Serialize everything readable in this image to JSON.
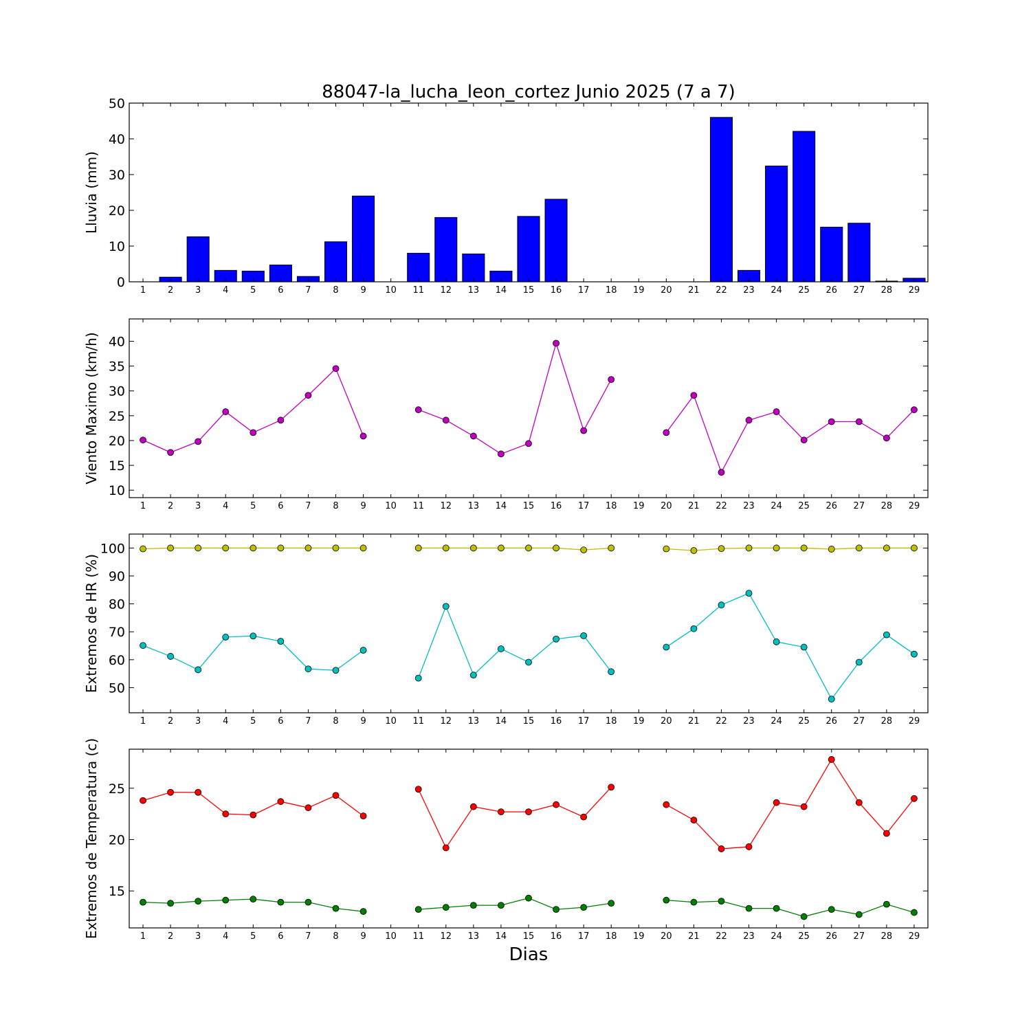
{
  "figure": {
    "title": "88047-la_lucha_leon_cortez Junio 2025  (7 a 7)",
    "xlabel": "Dias"
  },
  "chart_data": [
    {
      "type": "bar",
      "ylabel": "Lluvia (mm)",
      "ylim": [
        0,
        50
      ],
      "yticks": [
        0,
        10,
        20,
        30,
        40,
        50
      ],
      "x": [
        1,
        2,
        3,
        4,
        5,
        6,
        7,
        8,
        9,
        10,
        11,
        12,
        13,
        14,
        15,
        16,
        17,
        18,
        19,
        20,
        21,
        22,
        23,
        24,
        25,
        26,
        27,
        28,
        29
      ],
      "xticks": [
        1,
        2,
        3,
        4,
        5,
        6,
        7,
        8,
        9,
        10,
        11,
        12,
        13,
        14,
        15,
        16,
        17,
        18,
        19,
        20,
        21,
        22,
        23,
        24,
        25,
        26,
        27,
        28,
        29
      ],
      "color": "#0000ff",
      "values": [
        0,
        1.3,
        12.6,
        3.2,
        3.0,
        4.7,
        1.5,
        11.2,
        24.0,
        0,
        8.0,
        18.0,
        7.8,
        3.0,
        18.3,
        23.1,
        0,
        0,
        0,
        0,
        0,
        46.0,
        3.2,
        32.4,
        42.1,
        15.3,
        16.4,
        0.2,
        1.0
      ],
      "grid": false
    },
    {
      "type": "line",
      "ylabel": "Viento Maximo (km/h)",
      "ylim": [
        8.5,
        44.5
      ],
      "yticks": [
        10,
        15,
        20,
        25,
        30,
        35,
        40
      ],
      "x": [
        1,
        2,
        3,
        4,
        5,
        6,
        7,
        8,
        9,
        10,
        11,
        12,
        13,
        14,
        15,
        16,
        17,
        18,
        19,
        20,
        21,
        22,
        23,
        24,
        25,
        26,
        27,
        28,
        29
      ],
      "xticks": [
        1,
        2,
        3,
        4,
        5,
        6,
        7,
        8,
        9,
        10,
        11,
        12,
        13,
        14,
        15,
        16,
        17,
        18,
        19,
        20,
        21,
        22,
        23,
        24,
        25,
        26,
        27,
        28,
        29
      ],
      "series": [
        {
          "color": "#bf00bf",
          "values": [
            20.1,
            17.6,
            19.8,
            25.8,
            21.6,
            24.1,
            29.1,
            34.5,
            20.9,
            null,
            26.2,
            24.1,
            20.9,
            17.3,
            19.4,
            39.6,
            22.0,
            32.3,
            null,
            21.6,
            29.1,
            13.6,
            24.1,
            25.8,
            20.1,
            23.8,
            23.8,
            20.5,
            26.2
          ]
        }
      ],
      "grid": false
    },
    {
      "type": "line",
      "ylabel": "Extremos de HR (%)",
      "ylim": [
        41,
        105
      ],
      "yticks": [
        50,
        60,
        70,
        80,
        90,
        100
      ],
      "x": [
        1,
        2,
        3,
        4,
        5,
        6,
        7,
        8,
        9,
        10,
        11,
        12,
        13,
        14,
        15,
        16,
        17,
        18,
        19,
        20,
        21,
        22,
        23,
        24,
        25,
        26,
        27,
        28,
        29
      ],
      "xticks": [
        1,
        2,
        3,
        4,
        5,
        6,
        7,
        8,
        9,
        10,
        11,
        12,
        13,
        14,
        15,
        16,
        17,
        18,
        19,
        20,
        21,
        22,
        23,
        24,
        25,
        26,
        27,
        28,
        29
      ],
      "series": [
        {
          "color": "#bfbf00",
          "values": [
            99.7,
            100,
            100,
            100,
            100,
            100,
            100,
            100,
            100,
            null,
            100,
            100,
            100,
            100,
            100,
            100,
            99.3,
            100,
            null,
            99.7,
            99.1,
            99.8,
            100,
            100,
            100,
            99.6,
            100,
            100,
            100
          ]
        },
        {
          "color": "#00bfbf",
          "values": [
            65.1,
            61.2,
            56.4,
            68.1,
            68.5,
            66.6,
            56.7,
            56.2,
            63.4,
            null,
            53.4,
            79.1,
            54.5,
            63.9,
            59.1,
            67.4,
            68.6,
            55.7,
            null,
            64.5,
            71.1,
            79.6,
            83.8,
            66.4,
            64.5,
            45.9,
            59.1,
            68.9,
            62.0
          ]
        }
      ],
      "grid": false
    },
    {
      "type": "line",
      "ylabel": "Extremos de Temperatura (c)",
      "ylim": [
        11.4,
        28.8
      ],
      "yticks": [
        15,
        20,
        25
      ],
      "x": [
        1,
        2,
        3,
        4,
        5,
        6,
        7,
        8,
        9,
        10,
        11,
        12,
        13,
        14,
        15,
        16,
        17,
        18,
        19,
        20,
        21,
        22,
        23,
        24,
        25,
        26,
        27,
        28,
        29
      ],
      "xticks": [
        1,
        2,
        3,
        4,
        5,
        6,
        7,
        8,
        9,
        10,
        11,
        12,
        13,
        14,
        15,
        16,
        17,
        18,
        19,
        20,
        21,
        22,
        23,
        24,
        25,
        26,
        27,
        28,
        29
      ],
      "series": [
        {
          "color": "#ff0000",
          "values": [
            23.8,
            24.6,
            24.6,
            22.5,
            22.4,
            23.7,
            23.1,
            24.3,
            22.3,
            null,
            24.9,
            19.2,
            23.2,
            22.7,
            22.7,
            23.4,
            22.2,
            25.1,
            null,
            23.4,
            21.9,
            19.1,
            19.3,
            23.6,
            23.2,
            27.8,
            23.6,
            20.6,
            24.0
          ]
        },
        {
          "color": "#007f00",
          "values": [
            13.9,
            13.8,
            14.0,
            14.1,
            14.2,
            13.9,
            13.9,
            13.3,
            13.0,
            null,
            13.2,
            13.4,
            13.6,
            13.6,
            14.3,
            13.2,
            13.4,
            13.8,
            null,
            14.1,
            13.9,
            14.0,
            13.3,
            13.3,
            12.5,
            13.2,
            12.7,
            13.7,
            12.9
          ]
        }
      ],
      "grid": false
    }
  ]
}
